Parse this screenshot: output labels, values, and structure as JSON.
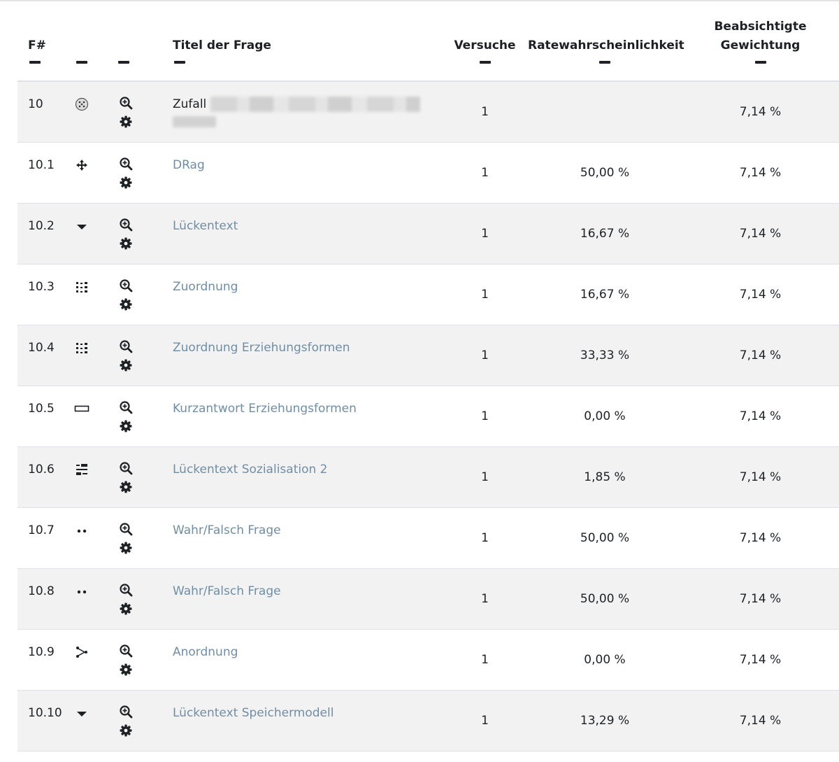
{
  "table": {
    "headers": {
      "number": "F#",
      "type": "",
      "actions": "",
      "title": "Titel der Frage",
      "attempts": "Versuche",
      "guess_probability": "Ratewahrscheinlichkeit",
      "intended_weight_line1": "Beabsichtigte",
      "intended_weight_line2": "Gewichtung"
    },
    "rows": [
      {
        "num": "10",
        "type_icon": "random-dice-icon",
        "title": "Zufall",
        "title_is_link": false,
        "title_redacted": true,
        "attempts": "1",
        "guess": "",
        "weight": "7,14 %"
      },
      {
        "num": "10.1",
        "type_icon": "drag-drop-icon",
        "title": "DRag",
        "title_is_link": true,
        "attempts": "1",
        "guess": "50,00 %",
        "weight": "7,14 %"
      },
      {
        "num": "10.2",
        "type_icon": "dropdown-caret-icon",
        "title": "Lückentext",
        "title_is_link": true,
        "attempts": "1",
        "guess": "16,67 %",
        "weight": "7,14 %"
      },
      {
        "num": "10.3",
        "type_icon": "matching-icon",
        "title": "Zuordnung",
        "title_is_link": true,
        "attempts": "1",
        "guess": "16,67 %",
        "weight": "7,14 %"
      },
      {
        "num": "10.4",
        "type_icon": "matching-icon",
        "title": "Zuordnung Erziehungsformen",
        "title_is_link": true,
        "attempts": "1",
        "guess": "33,33 %",
        "weight": "7,14 %"
      },
      {
        "num": "10.5",
        "type_icon": "short-answer-icon",
        "title": "Kurzantwort Erziehungsformen",
        "title_is_link": true,
        "attempts": "1",
        "guess": "0,00 %",
        "weight": "7,14 %"
      },
      {
        "num": "10.6",
        "type_icon": "gapselect-icon",
        "title": "Lückentext Sozialisation 2",
        "title_is_link": true,
        "attempts": "1",
        "guess": "1,85 %",
        "weight": "7,14 %"
      },
      {
        "num": "10.7",
        "type_icon": "true-false-icon",
        "title": "Wahr/Falsch Frage",
        "title_is_link": true,
        "attempts": "1",
        "guess": "50,00 %",
        "weight": "7,14 %"
      },
      {
        "num": "10.8",
        "type_icon": "true-false-icon",
        "title": "Wahr/Falsch Frage",
        "title_is_link": true,
        "attempts": "1",
        "guess": "50,00 %",
        "weight": "7,14 %"
      },
      {
        "num": "10.9",
        "type_icon": "ordering-icon",
        "title": "Anordnung",
        "title_is_link": true,
        "attempts": "1",
        "guess": "0,00 %",
        "weight": "7,14 %"
      },
      {
        "num": "10.10",
        "type_icon": "dropdown-caret-icon",
        "title": "Lückentext Speichermodell",
        "title_is_link": true,
        "attempts": "1",
        "guess": "13,29 %",
        "weight": "7,14 %"
      }
    ]
  },
  "colors": {
    "link": "#6f8ea5",
    "text": "#1d2125",
    "stripe": "#f2f2f2",
    "border": "#dee2e6"
  }
}
